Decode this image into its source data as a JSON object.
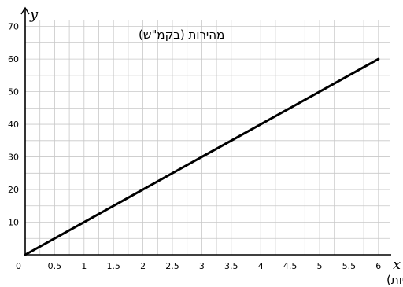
{
  "chart_data": {
    "type": "line",
    "x": [
      0,
      6
    ],
    "series": [
      {
        "values": [
          0,
          60
        ]
      }
    ],
    "xlim": [
      0,
      6.2
    ],
    "ylim": [
      0,
      72
    ],
    "xticks": [
      0.5,
      1,
      1.5,
      2,
      2.5,
      3,
      3.5,
      4,
      4.5,
      5,
      5.5,
      6
    ],
    "xtick_labels": [
      "0.5",
      "1",
      "1.5",
      "2",
      "2.5",
      "3",
      "3.5",
      "4",
      "4.5",
      "5",
      "5.5",
      "6"
    ],
    "yticks": [
      10,
      20,
      30,
      40,
      50,
      60,
      70
    ],
    "ytick_labels": [
      "10",
      "20",
      "30",
      "40",
      "50",
      "60",
      "70"
    ],
    "origin_label": "0",
    "x_axis_letter": "x",
    "y_axis_letter": "y",
    "xlabel": "זמן (בשניות)",
    "ylabel": "מהירות (בקמ\"ש)",
    "grid": true,
    "line_color": "#000000",
    "grid_color": "#c8c8c8"
  }
}
